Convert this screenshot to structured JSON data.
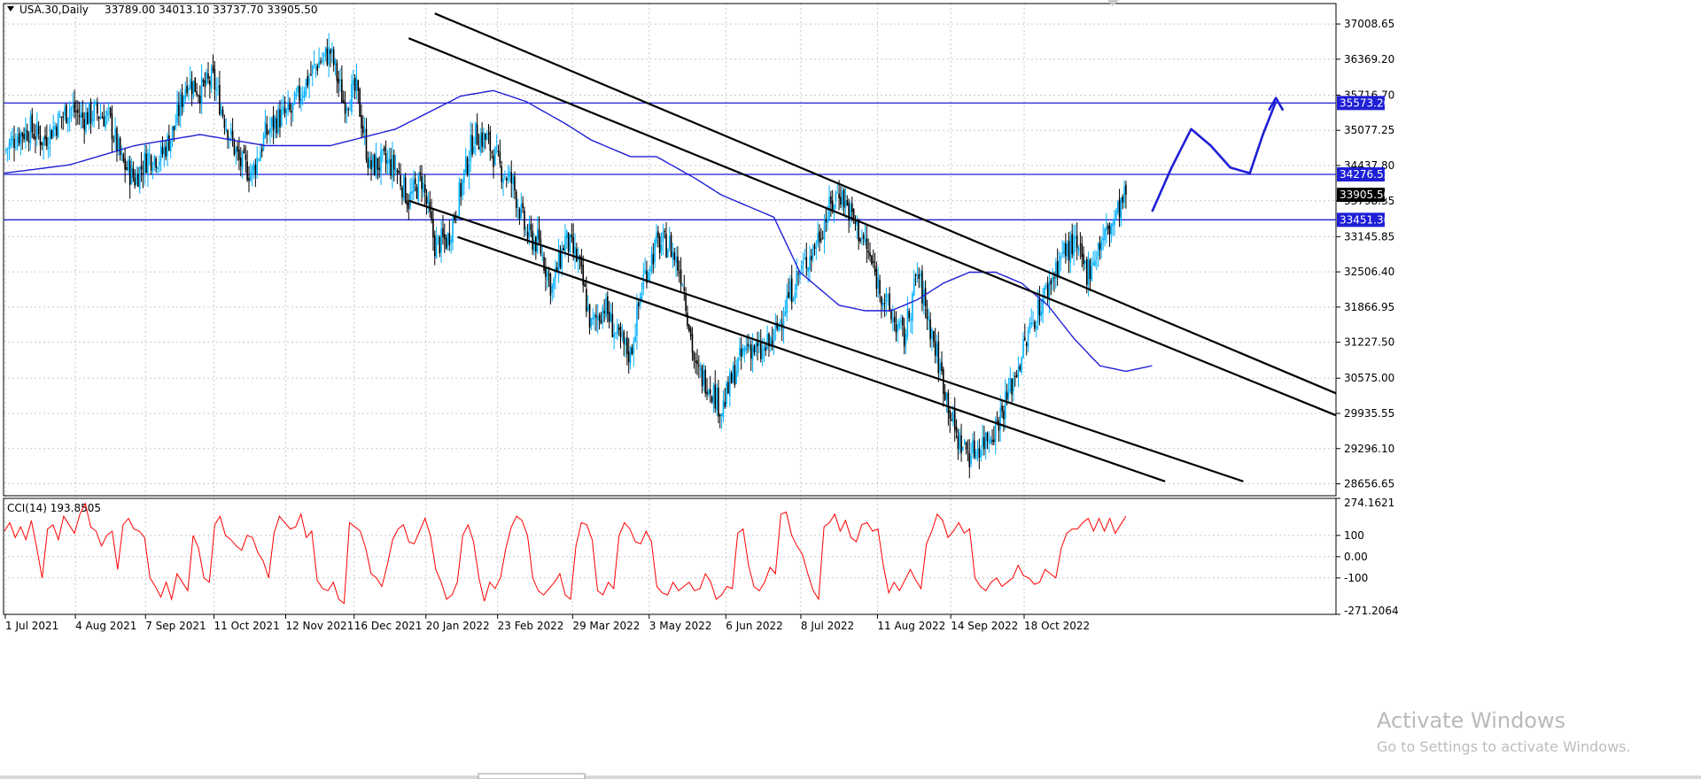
{
  "header": {
    "symbol": "USA.30,Daily",
    "ohlc": "33789.00 34013.10 33737.70 33905.50",
    "menu_icon": "triangle-down-icon"
  },
  "indicator": {
    "label": "CCI(14) 193.8505",
    "levels": [
      "274.1621",
      "100",
      "0.00",
      "-100",
      "-271.2064"
    ]
  },
  "watermark": {
    "line1": "Activate Windows",
    "line2": "Go to Settings to activate Windows."
  },
  "colors": {
    "bull": "#00b0ff",
    "bear": "#000000",
    "ma": "#1f1fd6",
    "hline": "#1f1fd6",
    "cci": "#ff0000",
    "channel": "#000000",
    "tag_blue": "#1f1fd6",
    "tag_dark": "#000000"
  },
  "chart_data": [
    {
      "type": "candlestick",
      "title": "USA.30,Daily",
      "x_tick_labels": [
        "1 Jul 2021",
        "4 Aug 2021",
        "7 Sep 2021",
        "11 Oct 2021",
        "12 Nov 2021",
        "16 Dec 2021",
        "20 Jan 2022",
        "23 Feb 2022",
        "29 Mar 2022",
        "3 May 2022",
        "6 Jun 2022",
        "8 Jul 2022",
        "11 Aug 2022",
        "14 Sep 2022",
        "18 Oct 2022"
      ],
      "y_tick_labels": [
        "37008.65",
        "36369.20",
        "35716.70",
        "35077.25",
        "34437.80",
        "33798.35",
        "33145.85",
        "32506.40",
        "31866.95",
        "31227.50",
        "30575.00",
        "29935.55",
        "29296.10",
        "28656.65"
      ],
      "ylim": [
        28440,
        37380
      ],
      "price_tags": [
        {
          "label": "35573.20",
          "style": "blue"
        },
        {
          "label": "34276.52",
          "style": "blue"
        },
        {
          "label": "33905.50",
          "style": "dark"
        },
        {
          "label": "33451.36",
          "style": "blue"
        }
      ],
      "horizontal_levels": [
        35573.2,
        34276.52,
        33451.36
      ],
      "close_path": [
        [
          0,
          34700
        ],
        [
          8,
          35000
        ],
        [
          16,
          35100
        ],
        [
          24,
          34900
        ],
        [
          32,
          35200
        ],
        [
          40,
          35500
        ],
        [
          48,
          35300
        ],
        [
          56,
          35400
        ],
        [
          64,
          35300
        ],
        [
          72,
          34500
        ],
        [
          80,
          34200
        ],
        [
          88,
          34600
        ],
        [
          96,
          34600
        ],
        [
          104,
          35100
        ],
        [
          112,
          36000
        ],
        [
          120,
          35800
        ],
        [
          128,
          36000
        ],
        [
          136,
          35200
        ],
        [
          144,
          34500
        ],
        [
          152,
          34300
        ],
        [
          160,
          35000
        ],
        [
          168,
          35300
        ],
        [
          176,
          35400
        ],
        [
          184,
          35900
        ],
        [
          192,
          36300
        ],
        [
          200,
          36500
        ],
        [
          208,
          35600
        ],
        [
          216,
          35800
        ],
        [
          224,
          34400
        ],
        [
          232,
          34500
        ],
        [
          240,
          34400
        ],
        [
          248,
          33800
        ],
        [
          256,
          34200
        ],
        [
          264,
          33000
        ],
        [
          272,
          33100
        ],
        [
          280,
          34000
        ],
        [
          288,
          35000
        ],
        [
          296,
          34900
        ],
        [
          304,
          34400
        ],
        [
          312,
          34100
        ],
        [
          320,
          33200
        ],
        [
          328,
          33000
        ],
        [
          336,
          32200
        ],
        [
          344,
          33100
        ],
        [
          352,
          32700
        ],
        [
          360,
          31500
        ],
        [
          368,
          31900
        ],
        [
          376,
          31300
        ],
        [
          384,
          31000
        ],
        [
          392,
          32400
        ],
        [
          400,
          33000
        ],
        [
          408,
          33000
        ],
        [
          416,
          32400
        ],
        [
          424,
          30700
        ],
        [
          432,
          30500
        ],
        [
          440,
          30000
        ],
        [
          448,
          30700
        ],
        [
          456,
          31200
        ],
        [
          464,
          31000
        ],
        [
          472,
          31300
        ],
        [
          480,
          32000
        ],
        [
          488,
          32500
        ],
        [
          496,
          32900
        ],
        [
          504,
          33500
        ],
        [
          512,
          34000
        ],
        [
          520,
          33500
        ],
        [
          528,
          33000
        ],
        [
          536,
          32300
        ],
        [
          544,
          31700
        ],
        [
          552,
          31300
        ],
        [
          560,
          32500
        ],
        [
          568,
          31500
        ],
        [
          576,
          30500
        ],
        [
          584,
          29500
        ],
        [
          592,
          29200
        ],
        [
          600,
          29400
        ],
        [
          608,
          29700
        ],
        [
          616,
          30300
        ],
        [
          624,
          31000
        ],
        [
          632,
          31700
        ],
        [
          640,
          32200
        ],
        [
          648,
          32800
        ],
        [
          656,
          33000
        ],
        [
          664,
          32500
        ],
        [
          672,
          33000
        ],
        [
          680,
          33400
        ],
        [
          688,
          33900
        ]
      ],
      "moving_average_path": [
        [
          0,
          34300
        ],
        [
          40,
          34450
        ],
        [
          80,
          34800
        ],
        [
          120,
          35000
        ],
        [
          160,
          34800
        ],
        [
          200,
          34800
        ],
        [
          240,
          35100
        ],
        [
          280,
          35700
        ],
        [
          300,
          35800
        ],
        [
          320,
          35600
        ],
        [
          344,
          35200
        ],
        [
          360,
          34900
        ],
        [
          384,
          34600
        ],
        [
          400,
          34600
        ],
        [
          424,
          34200
        ],
        [
          440,
          33900
        ],
        [
          472,
          33500
        ],
        [
          488,
          32500
        ],
        [
          512,
          31900
        ],
        [
          528,
          31800
        ],
        [
          544,
          31800
        ],
        [
          560,
          32000
        ],
        [
          576,
          32300
        ],
        [
          592,
          32500
        ],
        [
          608,
          32500
        ],
        [
          624,
          32300
        ],
        [
          640,
          31900
        ],
        [
          656,
          31300
        ],
        [
          672,
          30800
        ],
        [
          688,
          30700
        ],
        [
          696,
          30750
        ],
        [
          704,
          30800
        ]
      ],
      "projection_path": [
        [
          704,
          33600
        ],
        [
          716,
          34400
        ],
        [
          728,
          35100
        ],
        [
          740,
          34800
        ],
        [
          752,
          34400
        ],
        [
          764,
          34300
        ],
        [
          772,
          35000
        ],
        [
          780,
          35600
        ]
      ],
      "projection_arrow": "arrow-up-icon",
      "channel_lines": [
        {
          "from": [
            264,
            37200
          ],
          "to": [
            920,
            30300
          ]
        },
        {
          "from": [
            248,
            36750
          ],
          "to": [
            920,
            29900
          ]
        },
        {
          "from": [
            248,
            33800
          ],
          "to": [
            760,
            28700
          ]
        },
        {
          "from": [
            278,
            33140
          ],
          "to": [
            712,
            28700
          ]
        }
      ]
    },
    {
      "type": "line",
      "title": "CCI(14) 193.8505",
      "ylim": [
        -271.2064,
        274.1621
      ],
      "y_tick_labels": [
        "274.1621",
        "100",
        "0.00",
        "-100",
        "-271.2064"
      ],
      "values": [
        120,
        160,
        90,
        140,
        80,
        170,
        40,
        -100,
        130,
        150,
        80,
        190,
        150,
        110,
        200,
        250,
        140,
        120,
        50,
        100,
        120,
        -60,
        150,
        180,
        130,
        120,
        90,
        -100,
        -140,
        -190,
        -120,
        -200,
        -80,
        -120,
        -160,
        100,
        40,
        -100,
        -120,
        150,
        190,
        100,
        80,
        50,
        30,
        100,
        90,
        20,
        -20,
        -100,
        110,
        190,
        160,
        130,
        140,
        200,
        90,
        120,
        -110,
        -150,
        -160,
        -120,
        -200,
        -220,
        160,
        140,
        120,
        40,
        -80,
        -100,
        -140,
        -40,
        80,
        130,
        150,
        70,
        60,
        120,
        180,
        100,
        -60,
        -120,
        -200,
        -180,
        -120,
        100,
        150,
        70,
        -100,
        -210,
        -120,
        -150,
        -100,
        40,
        140,
        190,
        170,
        100,
        -100,
        -160,
        -180,
        -150,
        -120,
        -80,
        -180,
        -200,
        50,
        160,
        150,
        80,
        -160,
        -180,
        -120,
        -150,
        100,
        160,
        130,
        70,
        60,
        120,
        70,
        -140,
        -170,
        -180,
        -120,
        -160,
        -140,
        -120,
        -160,
        -150,
        -80,
        -120,
        -200,
        -180,
        -140,
        -150,
        110,
        130,
        -40,
        -140,
        -160,
        -120,
        -50,
        -80,
        200,
        210,
        100,
        50,
        10,
        -80,
        -160,
        -200,
        140,
        160,
        200,
        120,
        170,
        90,
        70,
        150,
        160,
        120,
        130,
        -40,
        -170,
        -120,
        -160,
        -110,
        -60,
        -110,
        -150,
        60,
        120,
        200,
        170,
        90,
        120,
        160,
        110,
        130,
        -100,
        -140,
        -160,
        -120,
        -100,
        -140,
        -120,
        -100,
        -40,
        -90,
        -100,
        -130,
        -120,
        -60,
        -80,
        -100,
        40,
        110,
        130,
        130,
        160,
        180,
        120,
        180,
        120,
        180,
        110,
        150,
        190
      ]
    }
  ]
}
